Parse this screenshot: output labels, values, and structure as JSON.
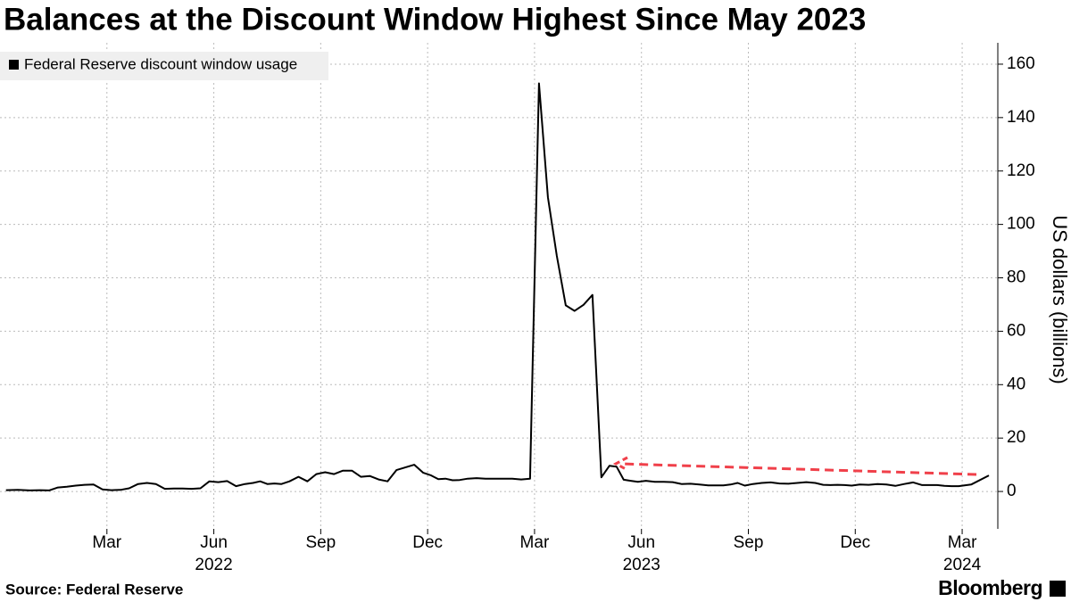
{
  "chart_data": {
    "type": "line",
    "title": "Balances at the Discount Window Highest Since May 2023",
    "y_label": "US dollars (billions)",
    "source": "Source: Federal Reserve",
    "brand": "Bloomberg",
    "grid": true,
    "legend": "top-left",
    "x": [
      "2021-12",
      "2021-12",
      "2021-12",
      "2022-01",
      "2022-01",
      "2022-01",
      "2022-01",
      "2022-02",
      "2022-02",
      "2022-02",
      "2022-02",
      "2022-03",
      "2022-03",
      "2022-03",
      "2022-03",
      "2022-04",
      "2022-04",
      "2022-04",
      "2022-04",
      "2022-05",
      "2022-05",
      "2022-05",
      "2022-05",
      "2022-06",
      "2022-06",
      "2022-06",
      "2022-06",
      "2022-07",
      "2022-07",
      "2022-07",
      "2022-07",
      "2022-07",
      "2022-08",
      "2022-08",
      "2022-08",
      "2022-08",
      "2022-09",
      "2022-09",
      "2022-09",
      "2022-09",
      "2022-10",
      "2022-10",
      "2022-10",
      "2022-10",
      "2022-11",
      "2022-11",
      "2022-11",
      "2022-11",
      "2022-12",
      "2022-12",
      "2022-12",
      "2022-12",
      "2022-12",
      "2023-01",
      "2023-01",
      "2023-01",
      "2023-01",
      "2023-02",
      "2023-02",
      "2023-02",
      "2023-02",
      "2023-03",
      "2023-03",
      "2023-03",
      "2023-03",
      "2023-04",
      "2023-04",
      "2023-04",
      "2023-04",
      "2023-05",
      "2023-05",
      "2023-05",
      "2023-05",
      "2023-05",
      "2023-06",
      "2023-06",
      "2023-06",
      "2023-06",
      "2023-07",
      "2023-07",
      "2023-07",
      "2023-07",
      "2023-08",
      "2023-08",
      "2023-08",
      "2023-08",
      "2023-08",
      "2023-09",
      "2023-09",
      "2023-09",
      "2023-09",
      "2023-10",
      "2023-10",
      "2023-10",
      "2023-10",
      "2023-11",
      "2023-11",
      "2023-11",
      "2023-11",
      "2023-11",
      "2023-12",
      "2023-12",
      "2023-12",
      "2023-12",
      "2024-01",
      "2024-01",
      "2024-01",
      "2024-01",
      "2024-02",
      "2024-02",
      "2024-02",
      "2024-02",
      "2024-02",
      "2024-03",
      "2024-03"
    ],
    "series": [
      {
        "name": "Federal Reserve discount window usage",
        "color": "#000000",
        "values": [
          0.5,
          0.6,
          0.4,
          0.5,
          0.4,
          1.5,
          1.8,
          2.2,
          2.5,
          2.6,
          0.8,
          0.5,
          0.6,
          1.2,
          2.8,
          3.2,
          2.8,
          1.0,
          1.1,
          1.1,
          1.0,
          1.2,
          3.8,
          3.5,
          3.9,
          2.0,
          2.8,
          3.2,
          3.8,
          2.8,
          3.0,
          2.8,
          3.8,
          5.5,
          3.8,
          6.5,
          7.2,
          6.5,
          7.8,
          7.8,
          5.5,
          5.8,
          4.5,
          3.8,
          8.0,
          9.0,
          10.0,
          7.0,
          6.0,
          4.6,
          4.8,
          4.2,
          4.3,
          4.8,
          5.0,
          4.8,
          4.8,
          4.8,
          4.8,
          4.5,
          4.8,
          152.8,
          110.2,
          88.2,
          69.7,
          67.6,
          69.9,
          73.6,
          5.3,
          9.6,
          9.3,
          4.4,
          4.0,
          3.6,
          4.0,
          3.6,
          3.6,
          3.5,
          2.8,
          2.9,
          2.6,
          2.3,
          2.3,
          2.3,
          2.6,
          3.2,
          2.2,
          2.8,
          3.2,
          3.4,
          3.0,
          2.9,
          3.2,
          3.5,
          3.2,
          2.5,
          2.4,
          2.5,
          2.4,
          2.2,
          2.6,
          2.5,
          2.8,
          2.6,
          2.1,
          2.8,
          3.4,
          2.4,
          2.4,
          2.4,
          2.1,
          2.0,
          2.0,
          2.6,
          6.0
        ]
      }
    ],
    "xlim": [
      "2021-12",
      "2024-04"
    ],
    "xticks": [
      {
        "value": "2022-03",
        "label": "Mar"
      },
      {
        "value": "2022-06",
        "label": "Jun",
        "year": "2022"
      },
      {
        "value": "2022-09",
        "label": "Sep"
      },
      {
        "value": "2022-12",
        "label": "Dec"
      },
      {
        "value": "2023-03",
        "label": "Mar"
      },
      {
        "value": "2023-06",
        "label": "Jun",
        "year": "2023"
      },
      {
        "value": "2023-09",
        "label": "Sep"
      },
      {
        "value": "2023-12",
        "label": "Dec"
      },
      {
        "value": "2024-03",
        "label": "Mar",
        "year": "2024"
      }
    ],
    "ylim": [
      -14,
      168
    ],
    "yticks": [
      0,
      20,
      40,
      60,
      80,
      100,
      120,
      140,
      160
    ]
  }
}
